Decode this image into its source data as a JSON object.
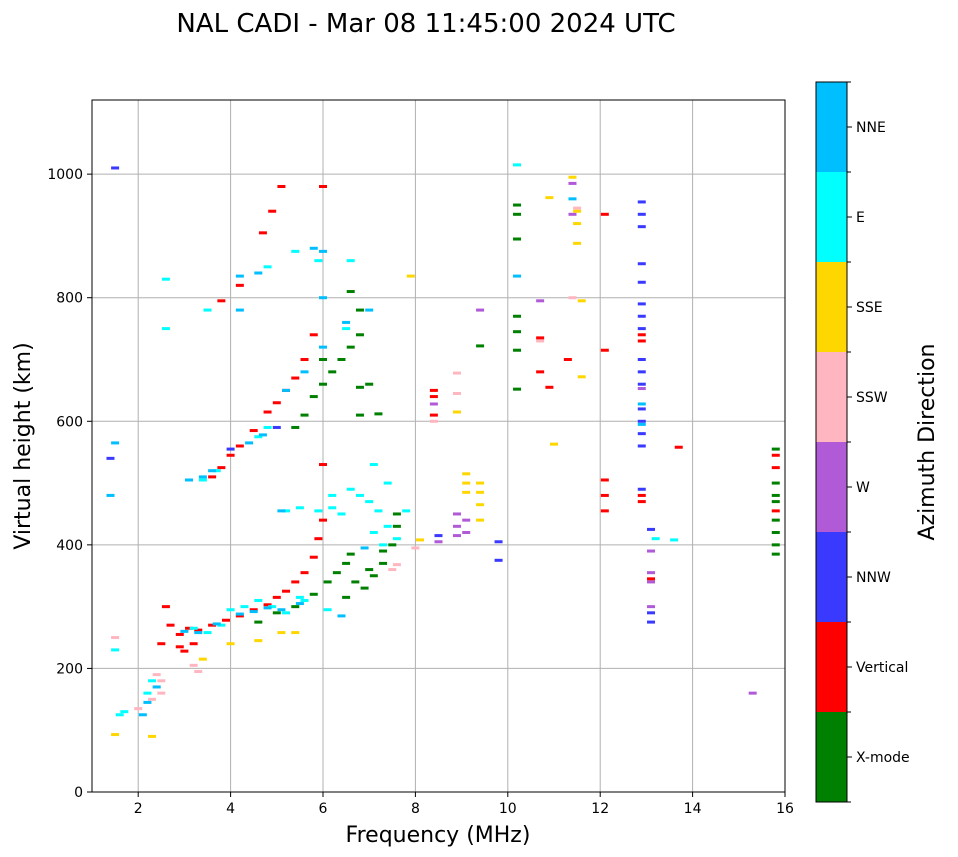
{
  "chart_data": {
    "type": "scatter",
    "title": "NAL CADI - Mar 08 11:45:00 2024 UTC",
    "xlabel": "Frequency (MHz)",
    "ylabel": "Virtual height (km)",
    "xlim": [
      1,
      16
    ],
    "ylim": [
      0,
      1120
    ],
    "xticks": [
      "2",
      "4",
      "6",
      "8",
      "10",
      "12",
      "14",
      "16"
    ],
    "yticks": [
      "0",
      "200",
      "400",
      "600",
      "800",
      "1000"
    ],
    "grid": true,
    "colorbar": {
      "label": "Azimuth Direction",
      "position": "right",
      "categories": [
        {
          "name": "X-mode",
          "color": "#008000"
        },
        {
          "name": "Vertical",
          "color": "#ff0000"
        },
        {
          "name": "NNW",
          "color": "#3a3aff"
        },
        {
          "name": "W",
          "color": "#b05ad8"
        },
        {
          "name": "SSW",
          "color": "#ffb6c1"
        },
        {
          "name": "SSE",
          "color": "#ffd700"
        },
        {
          "name": "E",
          "color": "#00ffff"
        },
        {
          "name": "NNE",
          "color": "#00bfff"
        }
      ]
    },
    "series": [
      {
        "name": "Vertical",
        "points": [
          [
            2.9,
            255
          ],
          [
            3.1,
            265
          ],
          [
            3.3,
            262
          ],
          [
            3.6,
            270
          ],
          [
            3.9,
            278
          ],
          [
            4.2,
            285
          ],
          [
            4.5,
            295
          ],
          [
            4.8,
            303
          ],
          [
            5.0,
            315
          ],
          [
            5.2,
            325
          ],
          [
            5.4,
            340
          ],
          [
            5.6,
            355
          ],
          [
            5.8,
            380
          ],
          [
            5.9,
            410
          ],
          [
            6.0,
            440
          ],
          [
            6.0,
            530
          ],
          [
            3.6,
            510
          ],
          [
            3.8,
            525
          ],
          [
            4.0,
            545
          ],
          [
            4.2,
            560
          ],
          [
            4.5,
            585
          ],
          [
            4.8,
            615
          ],
          [
            5.0,
            630
          ],
          [
            5.2,
            650
          ],
          [
            5.4,
            670
          ],
          [
            5.6,
            700
          ],
          [
            5.8,
            740
          ],
          [
            3.8,
            795
          ],
          [
            4.2,
            820
          ],
          [
            4.7,
            905
          ],
          [
            4.9,
            940
          ],
          [
            5.1,
            980
          ],
          [
            6.0,
            980
          ],
          [
            2.5,
            240
          ],
          [
            2.6,
            300
          ],
          [
            2.7,
            270
          ],
          [
            3.2,
            240
          ],
          [
            8.4,
            650
          ],
          [
            8.4,
            640
          ],
          [
            8.4,
            610
          ],
          [
            10.7,
            735
          ],
          [
            10.7,
            680
          ],
          [
            10.9,
            655
          ],
          [
            11.3,
            700
          ],
          [
            12.1,
            935
          ],
          [
            12.1,
            715
          ],
          [
            12.1,
            505
          ],
          [
            12.1,
            480
          ],
          [
            12.1,
            455
          ],
          [
            12.9,
            740
          ],
          [
            12.9,
            730
          ],
          [
            12.9,
            480
          ],
          [
            12.9,
            470
          ],
          [
            13.7,
            558
          ],
          [
            15.8,
            545
          ],
          [
            15.8,
            525
          ],
          [
            15.8,
            455
          ],
          [
            13.1,
            345
          ],
          [
            2.9,
            235
          ],
          [
            3.0,
            228
          ]
        ]
      },
      {
        "name": "X-mode",
        "points": [
          [
            4.6,
            275
          ],
          [
            5.0,
            290
          ],
          [
            5.4,
            300
          ],
          [
            5.8,
            320
          ],
          [
            6.1,
            340
          ],
          [
            6.3,
            355
          ],
          [
            6.5,
            370
          ],
          [
            6.6,
            385
          ],
          [
            6.9,
            330
          ],
          [
            7.1,
            350
          ],
          [
            7.3,
            370
          ],
          [
            7.5,
            400
          ],
          [
            7.6,
            430
          ],
          [
            7.6,
            450
          ],
          [
            5.4,
            590
          ],
          [
            5.6,
            610
          ],
          [
            5.8,
            640
          ],
          [
            6.0,
            660
          ],
          [
            6.2,
            680
          ],
          [
            6.4,
            700
          ],
          [
            6.6,
            720
          ],
          [
            6.8,
            740
          ],
          [
            6.8,
            780
          ],
          [
            6.6,
            810
          ],
          [
            6.8,
            610
          ],
          [
            6.8,
            655
          ],
          [
            7.0,
            660
          ],
          [
            7.2,
            612
          ],
          [
            6.0,
            700
          ],
          [
            9.4,
            722
          ],
          [
            10.2,
            950
          ],
          [
            10.2,
            935
          ],
          [
            10.2,
            895
          ],
          [
            10.2,
            770
          ],
          [
            10.2,
            745
          ],
          [
            10.2,
            715
          ],
          [
            10.2,
            652
          ],
          [
            15.8,
            555
          ],
          [
            15.8,
            500
          ],
          [
            15.8,
            480
          ],
          [
            15.8,
            470
          ],
          [
            15.8,
            440
          ],
          [
            15.8,
            420
          ],
          [
            15.8,
            400
          ],
          [
            15.8,
            385
          ],
          [
            6.5,
            315
          ],
          [
            6.7,
            340
          ],
          [
            7.0,
            360
          ],
          [
            7.3,
            390
          ]
        ]
      },
      {
        "name": "NNW",
        "points": [
          [
            12.9,
            955
          ],
          [
            12.9,
            935
          ],
          [
            12.9,
            915
          ],
          [
            12.9,
            855
          ],
          [
            12.9,
            825
          ],
          [
            12.9,
            790
          ],
          [
            12.9,
            770
          ],
          [
            12.9,
            750
          ],
          [
            12.9,
            700
          ],
          [
            12.9,
            680
          ],
          [
            12.9,
            660
          ],
          [
            12.9,
            620
          ],
          [
            12.9,
            600
          ],
          [
            12.9,
            580
          ],
          [
            12.9,
            560
          ],
          [
            12.9,
            490
          ],
          [
            13.1,
            425
          ],
          [
            13.1,
            290
          ],
          [
            13.1,
            275
          ],
          [
            8.5,
            415
          ],
          [
            9.8,
            405
          ],
          [
            9.8,
            375
          ],
          [
            1.5,
            1010
          ],
          [
            1.4,
            540
          ],
          [
            5.0,
            590
          ],
          [
            4.0,
            555
          ]
        ]
      },
      {
        "name": "W",
        "points": [
          [
            8.9,
            450
          ],
          [
            8.9,
            430
          ],
          [
            8.9,
            415
          ],
          [
            9.1,
            440
          ],
          [
            9.1,
            420
          ],
          [
            8.5,
            405
          ],
          [
            8.4,
            628
          ],
          [
            9.4,
            780
          ],
          [
            10.7,
            795
          ],
          [
            11.4,
            985
          ],
          [
            11.4,
            935
          ],
          [
            13.1,
            390
          ],
          [
            13.1,
            355
          ],
          [
            13.1,
            340
          ],
          [
            15.3,
            160
          ],
          [
            13.1,
            300
          ],
          [
            12.9,
            653
          ]
        ]
      },
      {
        "name": "SSW",
        "points": [
          [
            2.4,
            190
          ],
          [
            2.4,
            170
          ],
          [
            2.5,
            160
          ],
          [
            2.5,
            180
          ],
          [
            3.2,
            205
          ],
          [
            3.3,
            195
          ],
          [
            2.3,
            150
          ],
          [
            8.4,
            600
          ],
          [
            8.9,
            678
          ],
          [
            8.9,
            645
          ],
          [
            10.7,
            730
          ],
          [
            11.4,
            800
          ],
          [
            11.5,
            945
          ],
          [
            7.6,
            368
          ],
          [
            7.5,
            360
          ],
          [
            8.0,
            395
          ],
          [
            1.5,
            250
          ],
          [
            2.0,
            135
          ]
        ]
      },
      {
        "name": "SSE",
        "points": [
          [
            9.1,
            515
          ],
          [
            9.1,
            500
          ],
          [
            9.1,
            485
          ],
          [
            9.4,
            500
          ],
          [
            9.4,
            485
          ],
          [
            9.4,
            465
          ],
          [
            9.4,
            440
          ],
          [
            8.9,
            615
          ],
          [
            10.9,
            962
          ],
          [
            11.4,
            995
          ],
          [
            11.5,
            940
          ],
          [
            11.5,
            920
          ],
          [
            11.5,
            888
          ],
          [
            11.6,
            672
          ],
          [
            11.6,
            795
          ],
          [
            11.0,
            563
          ],
          [
            4.0,
            240
          ],
          [
            4.6,
            245
          ],
          [
            5.1,
            258
          ],
          [
            5.4,
            258
          ],
          [
            7.9,
            835
          ],
          [
            8.1,
            408
          ],
          [
            1.5,
            93
          ],
          [
            2.3,
            90
          ],
          [
            3.4,
            215
          ]
        ]
      },
      {
        "name": "E",
        "points": [
          [
            3.2,
            265
          ],
          [
            3.5,
            258
          ],
          [
            3.8,
            270
          ],
          [
            4.0,
            295
          ],
          [
            4.3,
            300
          ],
          [
            4.6,
            310
          ],
          [
            4.9,
            300
          ],
          [
            5.2,
            290
          ],
          [
            5.6,
            310
          ],
          [
            5.9,
            455
          ],
          [
            6.2,
            460
          ],
          [
            6.4,
            450
          ],
          [
            6.6,
            490
          ],
          [
            6.8,
            480
          ],
          [
            7.0,
            470
          ],
          [
            7.2,
            455
          ],
          [
            7.4,
            430
          ],
          [
            7.6,
            410
          ],
          [
            7.1,
            420
          ],
          [
            7.3,
            400
          ],
          [
            5.5,
            460
          ],
          [
            5.2,
            455
          ],
          [
            3.4,
            505
          ],
          [
            3.7,
            520
          ],
          [
            4.6,
            575
          ],
          [
            4.8,
            590
          ],
          [
            2.6,
            750
          ],
          [
            2.6,
            830
          ],
          [
            3.5,
            780
          ],
          [
            4.8,
            850
          ],
          [
            5.4,
            875
          ],
          [
            5.9,
            860
          ],
          [
            6.5,
            750
          ],
          [
            6.6,
            860
          ],
          [
            7.1,
            530
          ],
          [
            7.4,
            500
          ],
          [
            13.2,
            410
          ],
          [
            13.6,
            408
          ],
          [
            10.2,
            1015
          ],
          [
            7.8,
            455
          ],
          [
            1.6,
            125
          ],
          [
            1.7,
            130
          ],
          [
            2.2,
            160
          ],
          [
            2.3,
            180
          ],
          [
            6.2,
            480
          ],
          [
            6.1,
            295
          ],
          [
            5.5,
            315
          ],
          [
            1.5,
            230
          ]
        ]
      },
      {
        "name": "NNE",
        "points": [
          [
            3.0,
            260
          ],
          [
            3.3,
            258
          ],
          [
            3.7,
            272
          ],
          [
            4.2,
            288
          ],
          [
            4.5,
            292
          ],
          [
            4.8,
            298
          ],
          [
            5.1,
            295
          ],
          [
            5.5,
            305
          ],
          [
            3.1,
            505
          ],
          [
            3.4,
            510
          ],
          [
            3.6,
            520
          ],
          [
            4.4,
            565
          ],
          [
            4.7,
            578
          ],
          [
            5.2,
            650
          ],
          [
            5.6,
            680
          ],
          [
            6.0,
            720
          ],
          [
            6.5,
            760
          ],
          [
            7.0,
            780
          ],
          [
            4.2,
            835
          ],
          [
            4.6,
            840
          ],
          [
            4.2,
            780
          ],
          [
            5.8,
            880
          ],
          [
            6.4,
            285
          ],
          [
            6.9,
            395
          ],
          [
            10.2,
            835
          ],
          [
            11.4,
            960
          ],
          [
            12.9,
            628
          ],
          [
            12.9,
            595
          ],
          [
            1.4,
            480
          ],
          [
            1.5,
            565
          ],
          [
            2.1,
            125
          ],
          [
            2.2,
            145
          ],
          [
            2.4,
            170
          ],
          [
            6.0,
            800
          ],
          [
            6.0,
            875
          ],
          [
            5.1,
            455
          ]
        ]
      }
    ]
  }
}
